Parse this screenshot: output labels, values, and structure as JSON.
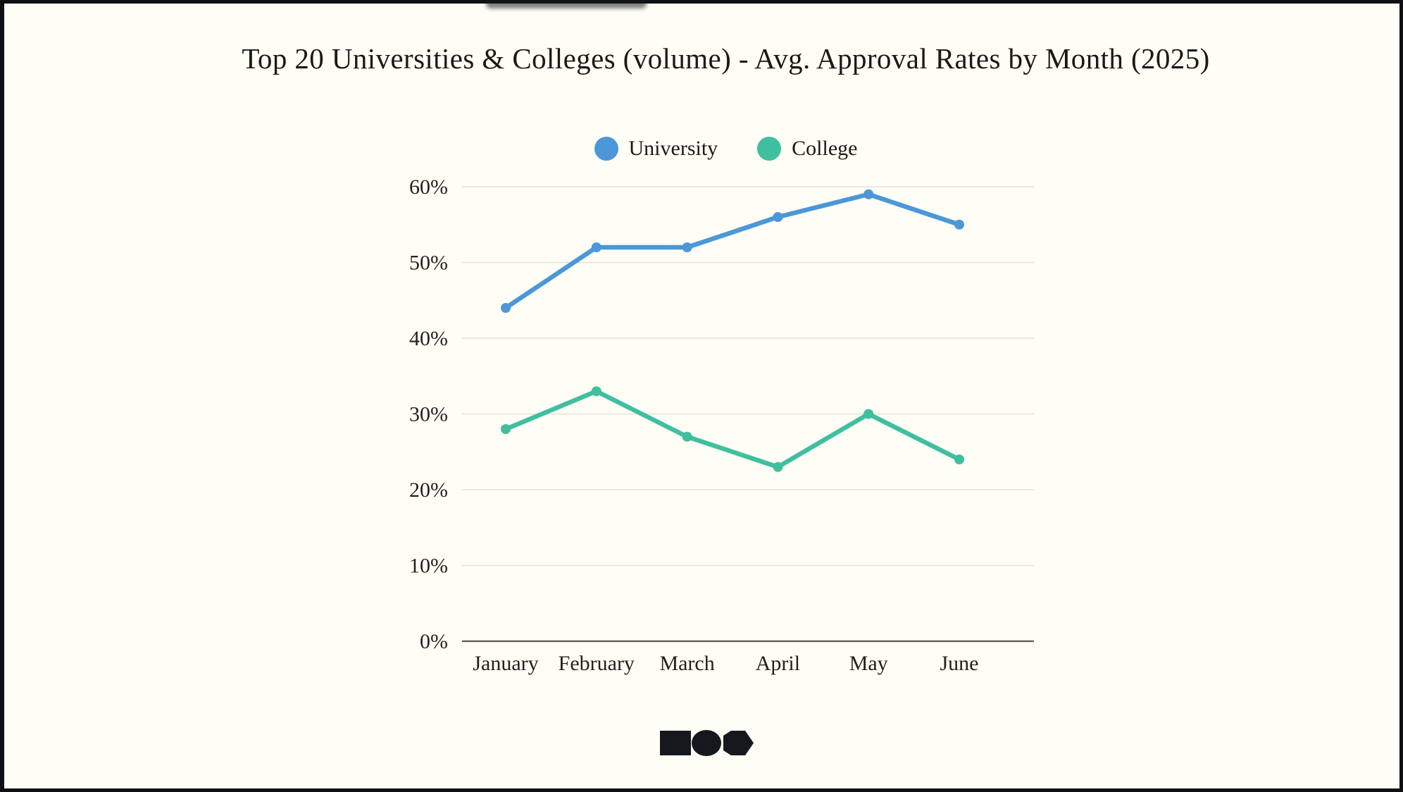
{
  "chart_data": {
    "type": "line",
    "title": "Top 20 Universities & Colleges (volume) - Avg. Approval Rates by Month (2025)",
    "categories": [
      "January",
      "February",
      "March",
      "April",
      "May",
      "June"
    ],
    "series": [
      {
        "name": "University",
        "color": "#4b97d8",
        "values": [
          44,
          52,
          52,
          56,
          59,
          55
        ]
      },
      {
        "name": "College",
        "color": "#40bf9e",
        "values": [
          28,
          33,
          27,
          23,
          30,
          24
        ]
      }
    ],
    "xlabel": "",
    "ylabel": "",
    "ylim": [
      0,
      60
    ],
    "ytick_step": 10,
    "ytick_labels": [
      "0%",
      "10%",
      "20%",
      "30%",
      "40%",
      "50%",
      "60%"
    ],
    "grid": "horizontal",
    "legend_position": "top"
  },
  "colors": {
    "background": "#fefdf6",
    "frame_border": "#0e1013",
    "gridline": "#e3e1d8",
    "zero_axis": "#5a574f",
    "text": "#23211b",
    "logo": "#17181d"
  },
  "logo": {
    "shapes": [
      "square",
      "circle",
      "hexagon"
    ]
  }
}
